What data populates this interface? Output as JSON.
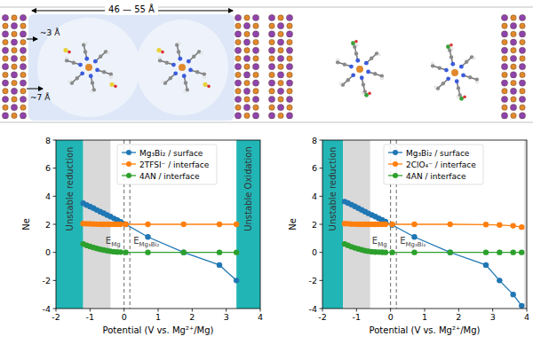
{
  "schematic": {
    "dimension_label": "46 — 55 Å",
    "offset_labels": [
      "~3 Å",
      "~7 Å"
    ]
  },
  "chart_data": [
    {
      "type": "line",
      "x_label": "Potential (V vs. Mg²⁺/Mg)",
      "y_label": "Ne",
      "xlim": [
        -2,
        4
      ],
      "xticks": [
        -2,
        -1,
        0,
        1,
        2,
        3,
        4
      ],
      "ylim": [
        -4,
        8
      ],
      "yticks": [
        -4,
        -2,
        0,
        2,
        4,
        6,
        8
      ],
      "grid": false,
      "legend": "top",
      "x": [
        -1.2,
        -1.1,
        -1.0,
        -0.9,
        -0.8,
        -0.7,
        -0.6,
        -0.5,
        -0.4,
        -0.3,
        -0.2,
        -0.1,
        0.05,
        0.7,
        1.75,
        2.8,
        3.3
      ],
      "series": [
        {
          "name": "Mg₃Bi₂ / surface",
          "color": "#1f77b4",
          "marker": "circle",
          "line_style": "solid",
          "values": [
            3.5,
            3.37,
            3.26,
            3.15,
            3.02,
            2.9,
            2.79,
            2.66,
            2.55,
            2.42,
            2.3,
            2.18,
            2.0,
            1.1,
            0.0,
            -0.9,
            -2.0
          ]
        },
        {
          "name": "2TFSI⁻ / interface",
          "color": "#ff7f0e",
          "marker": "circle",
          "line_style": "solid",
          "values": [
            2.05,
            2.04,
            2.03,
            2.02,
            2.01,
            2.0,
            2.0,
            2.0,
            2.0,
            2.0,
            2.0,
            2.0,
            2.0,
            2.0,
            2.0,
            2.0,
            2.0
          ]
        },
        {
          "name": "4AN / interface",
          "color": "#2ca02c",
          "marker": "circle",
          "line_style": "solid",
          "values": [
            0.6,
            0.5,
            0.42,
            0.35,
            0.28,
            0.22,
            0.17,
            0.12,
            0.08,
            0.05,
            0.03,
            0.02,
            0.0,
            0.0,
            0.0,
            0.0,
            0.0
          ]
        }
      ],
      "regions": [
        {
          "x0": -2,
          "x1": -1.2,
          "color": "#22b5b5",
          "label": "Unstable reduction"
        },
        {
          "x0": -1.2,
          "x1": -0.4,
          "color": "#d9d9d9"
        },
        {
          "x0": 3.3,
          "x1": 4,
          "color": "#22b5b5",
          "label": "Unstable Oxidation"
        }
      ],
      "vlines": [
        {
          "x": 0,
          "main": "E",
          "sub": "Mg"
        },
        {
          "x": 0.17,
          "main": "E",
          "sub": "Mg₃Bi₂"
        }
      ]
    },
    {
      "type": "line",
      "x_label": "Potential (V vs. Mg²⁺/Mg)",
      "y_label": "Ne",
      "xlim": [
        -2,
        4
      ],
      "xticks": [
        -2,
        -1,
        0,
        1,
        2,
        3,
        4
      ],
      "ylim": [
        -4,
        8
      ],
      "yticks": [
        -4,
        -2,
        0,
        2,
        4,
        6,
        8
      ],
      "grid": false,
      "legend": "top",
      "x": [
        -1.35,
        -1.25,
        -1.15,
        -1.05,
        -0.95,
        -0.85,
        -0.75,
        -0.65,
        -0.55,
        -0.45,
        -0.35,
        -0.25,
        -0.15,
        0.05,
        0.7,
        1.75,
        2.8,
        3.2,
        3.6,
        3.85
      ],
      "series": [
        {
          "name": "Mg₃Bi₂ / surface",
          "color": "#1f77b4",
          "marker": "circle",
          "line_style": "solid",
          "values": [
            3.62,
            3.52,
            3.4,
            3.28,
            3.15,
            3.03,
            2.9,
            2.78,
            2.66,
            2.55,
            2.43,
            2.32,
            2.2,
            1.95,
            1.1,
            0.0,
            -0.9,
            -2.0,
            -3.0,
            -3.8
          ]
        },
        {
          "name": "2ClO₄⁻ / interface",
          "color": "#ff7f0e",
          "marker": "circle",
          "line_style": "solid",
          "values": [
            2.05,
            2.04,
            2.02,
            2.01,
            2.0,
            2.0,
            2.0,
            2.0,
            2.0,
            2.0,
            2.0,
            2.0,
            2.0,
            2.0,
            2.0,
            2.0,
            1.98,
            1.95,
            1.9,
            1.8
          ]
        },
        {
          "name": "4AN / interface",
          "color": "#2ca02c",
          "marker": "circle",
          "line_style": "solid",
          "values": [
            0.6,
            0.5,
            0.4,
            0.32,
            0.25,
            0.18,
            0.12,
            0.08,
            0.05,
            0.03,
            0.02,
            0.01,
            0.0,
            0.0,
            0.0,
            0.0,
            0.0,
            0.0,
            0.0,
            0.0
          ]
        }
      ],
      "regions": [
        {
          "x0": -2,
          "x1": -1.4,
          "color": "#22b5b5",
          "label": "Unstable reduction"
        },
        {
          "x0": -1.4,
          "x1": -0.6,
          "color": "#d9d9d9"
        },
        {
          "x0": 3.93,
          "x1": 4,
          "color": "#d9d9d9"
        }
      ],
      "vlines": [
        {
          "x": 0,
          "main": "E",
          "sub": "Mg"
        },
        {
          "x": 0.17,
          "main": "E",
          "sub": "Mg₃Bi₂"
        }
      ]
    }
  ]
}
